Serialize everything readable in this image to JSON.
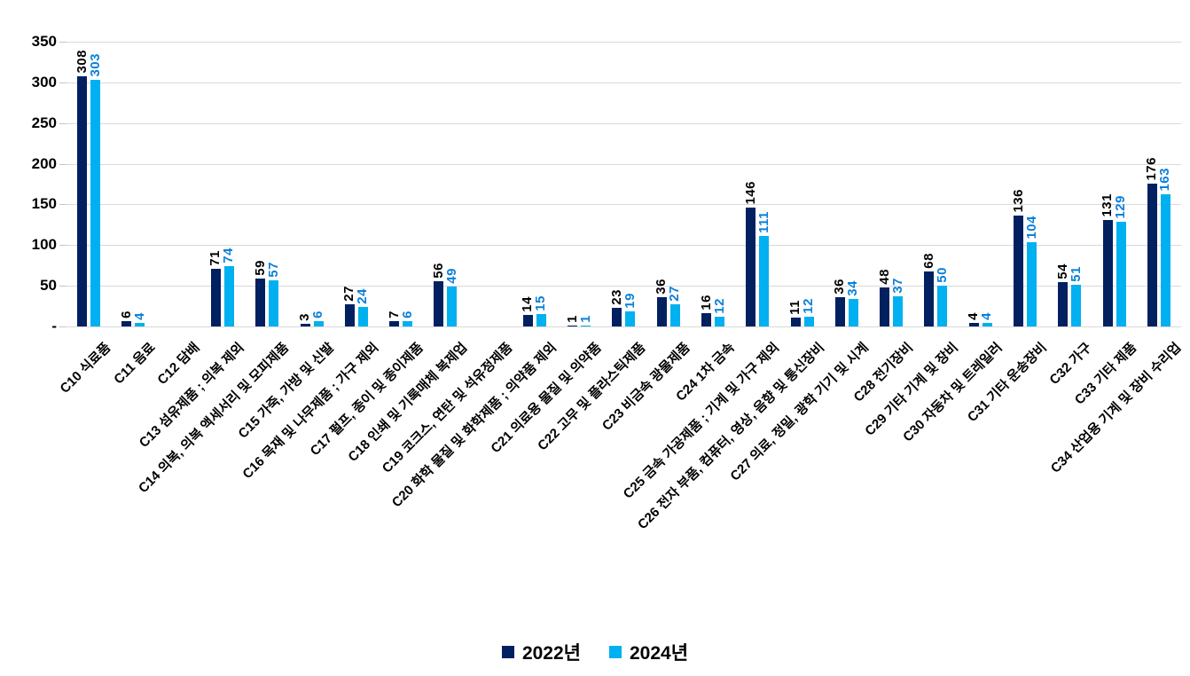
{
  "chart_data": {
    "type": "bar",
    "title": "",
    "xlabel": "",
    "ylabel": "",
    "grid": true,
    "legend_position": "bottom",
    "y_axis": {
      "min": 0,
      "max": 350,
      "tick_values": [
        350,
        300,
        250,
        200,
        150,
        100,
        50,
        0
      ],
      "tick_labels": [
        "350",
        "300",
        "250",
        "200",
        "150",
        "100",
        "50",
        "-"
      ]
    },
    "categories": [
      "C10 식료품",
      "C11 음료",
      "C12 담배",
      "C13 섬유제품 ; 의복 제외",
      "C14 의복, 의복 액세서리 및 모피제품",
      "C15 가죽, 가방 및 신발",
      "C16 목재 및 나무제품 ; 가구 제외",
      "C17 펄프, 종이 및 종이제품",
      "C18 인쇄 및 기록매체 복제업",
      "C19 코크스, 연탄 및 석유정제품",
      "C20 화학 물질 및 화학제품 ; 의약품 제외",
      "C21 의료용 물질 및 의약품",
      "C22 고무 및 플라스틱제품",
      "C23 비금속 광물제품",
      "C24 1차 금속",
      "C25 금속 가공제품 ; 기계 및 가구 제외",
      "C26 전자 부품, 컴퓨터, 영상, 음향 및 통신장비",
      "C27 의료, 정밀, 광학 기기 및 시계",
      "C28 전기장비",
      "C29 기타 기계 및 장비",
      "C30 자동차 및 트레일러",
      "C31 기타 운송장비",
      "C32 가구",
      "C33 기타 제품",
      "C34 산업용 기계 및 장비 수리업"
    ],
    "series": [
      {
        "name": "2022년",
        "color": "#002060",
        "label_color": "#000000",
        "values": [
          308,
          6,
          null,
          71,
          59,
          3,
          27,
          7,
          56,
          null,
          14,
          1,
          23,
          36,
          16,
          146,
          11,
          36,
          48,
          68,
          4,
          136,
          54,
          131,
          176
        ]
      },
      {
        "name": "2024년",
        "color": "#00b0f0",
        "label_color": "#0b80d8",
        "values": [
          303,
          4,
          null,
          74,
          57,
          6,
          24,
          6,
          49,
          null,
          15,
          1,
          19,
          27,
          12,
          111,
          12,
          34,
          37,
          50,
          4,
          104,
          51,
          129,
          163
        ]
      }
    ],
    "style": {
      "gridline_color": "#d9d9d9",
      "axis_line_color": "#d9d9d9",
      "background": "#ffffff"
    }
  }
}
